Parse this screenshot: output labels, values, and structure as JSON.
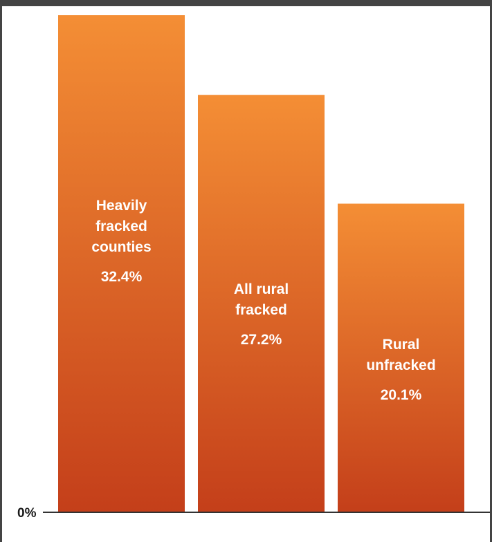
{
  "chart_data": {
    "type": "bar",
    "categories": [
      "Heavily fracked counties",
      "All rural fracked",
      "Rural unfracked"
    ],
    "category_lines": [
      [
        "Heavily",
        "fracked",
        "counties"
      ],
      [
        "All rural",
        "fracked"
      ],
      [
        "Rural",
        "unfracked"
      ]
    ],
    "values": [
      32.4,
      27.2,
      20.1
    ],
    "value_labels": [
      "32.4%",
      "27.2%",
      "20.1%"
    ],
    "y_axis_tick": "0%",
    "ylim": [
      0,
      32.4
    ],
    "grid": false,
    "legend": "none",
    "colors": {
      "bar_top": "#F48E35",
      "bar_bottom": "#C43F1A",
      "frame": "#444444",
      "axis": "#333333"
    }
  }
}
